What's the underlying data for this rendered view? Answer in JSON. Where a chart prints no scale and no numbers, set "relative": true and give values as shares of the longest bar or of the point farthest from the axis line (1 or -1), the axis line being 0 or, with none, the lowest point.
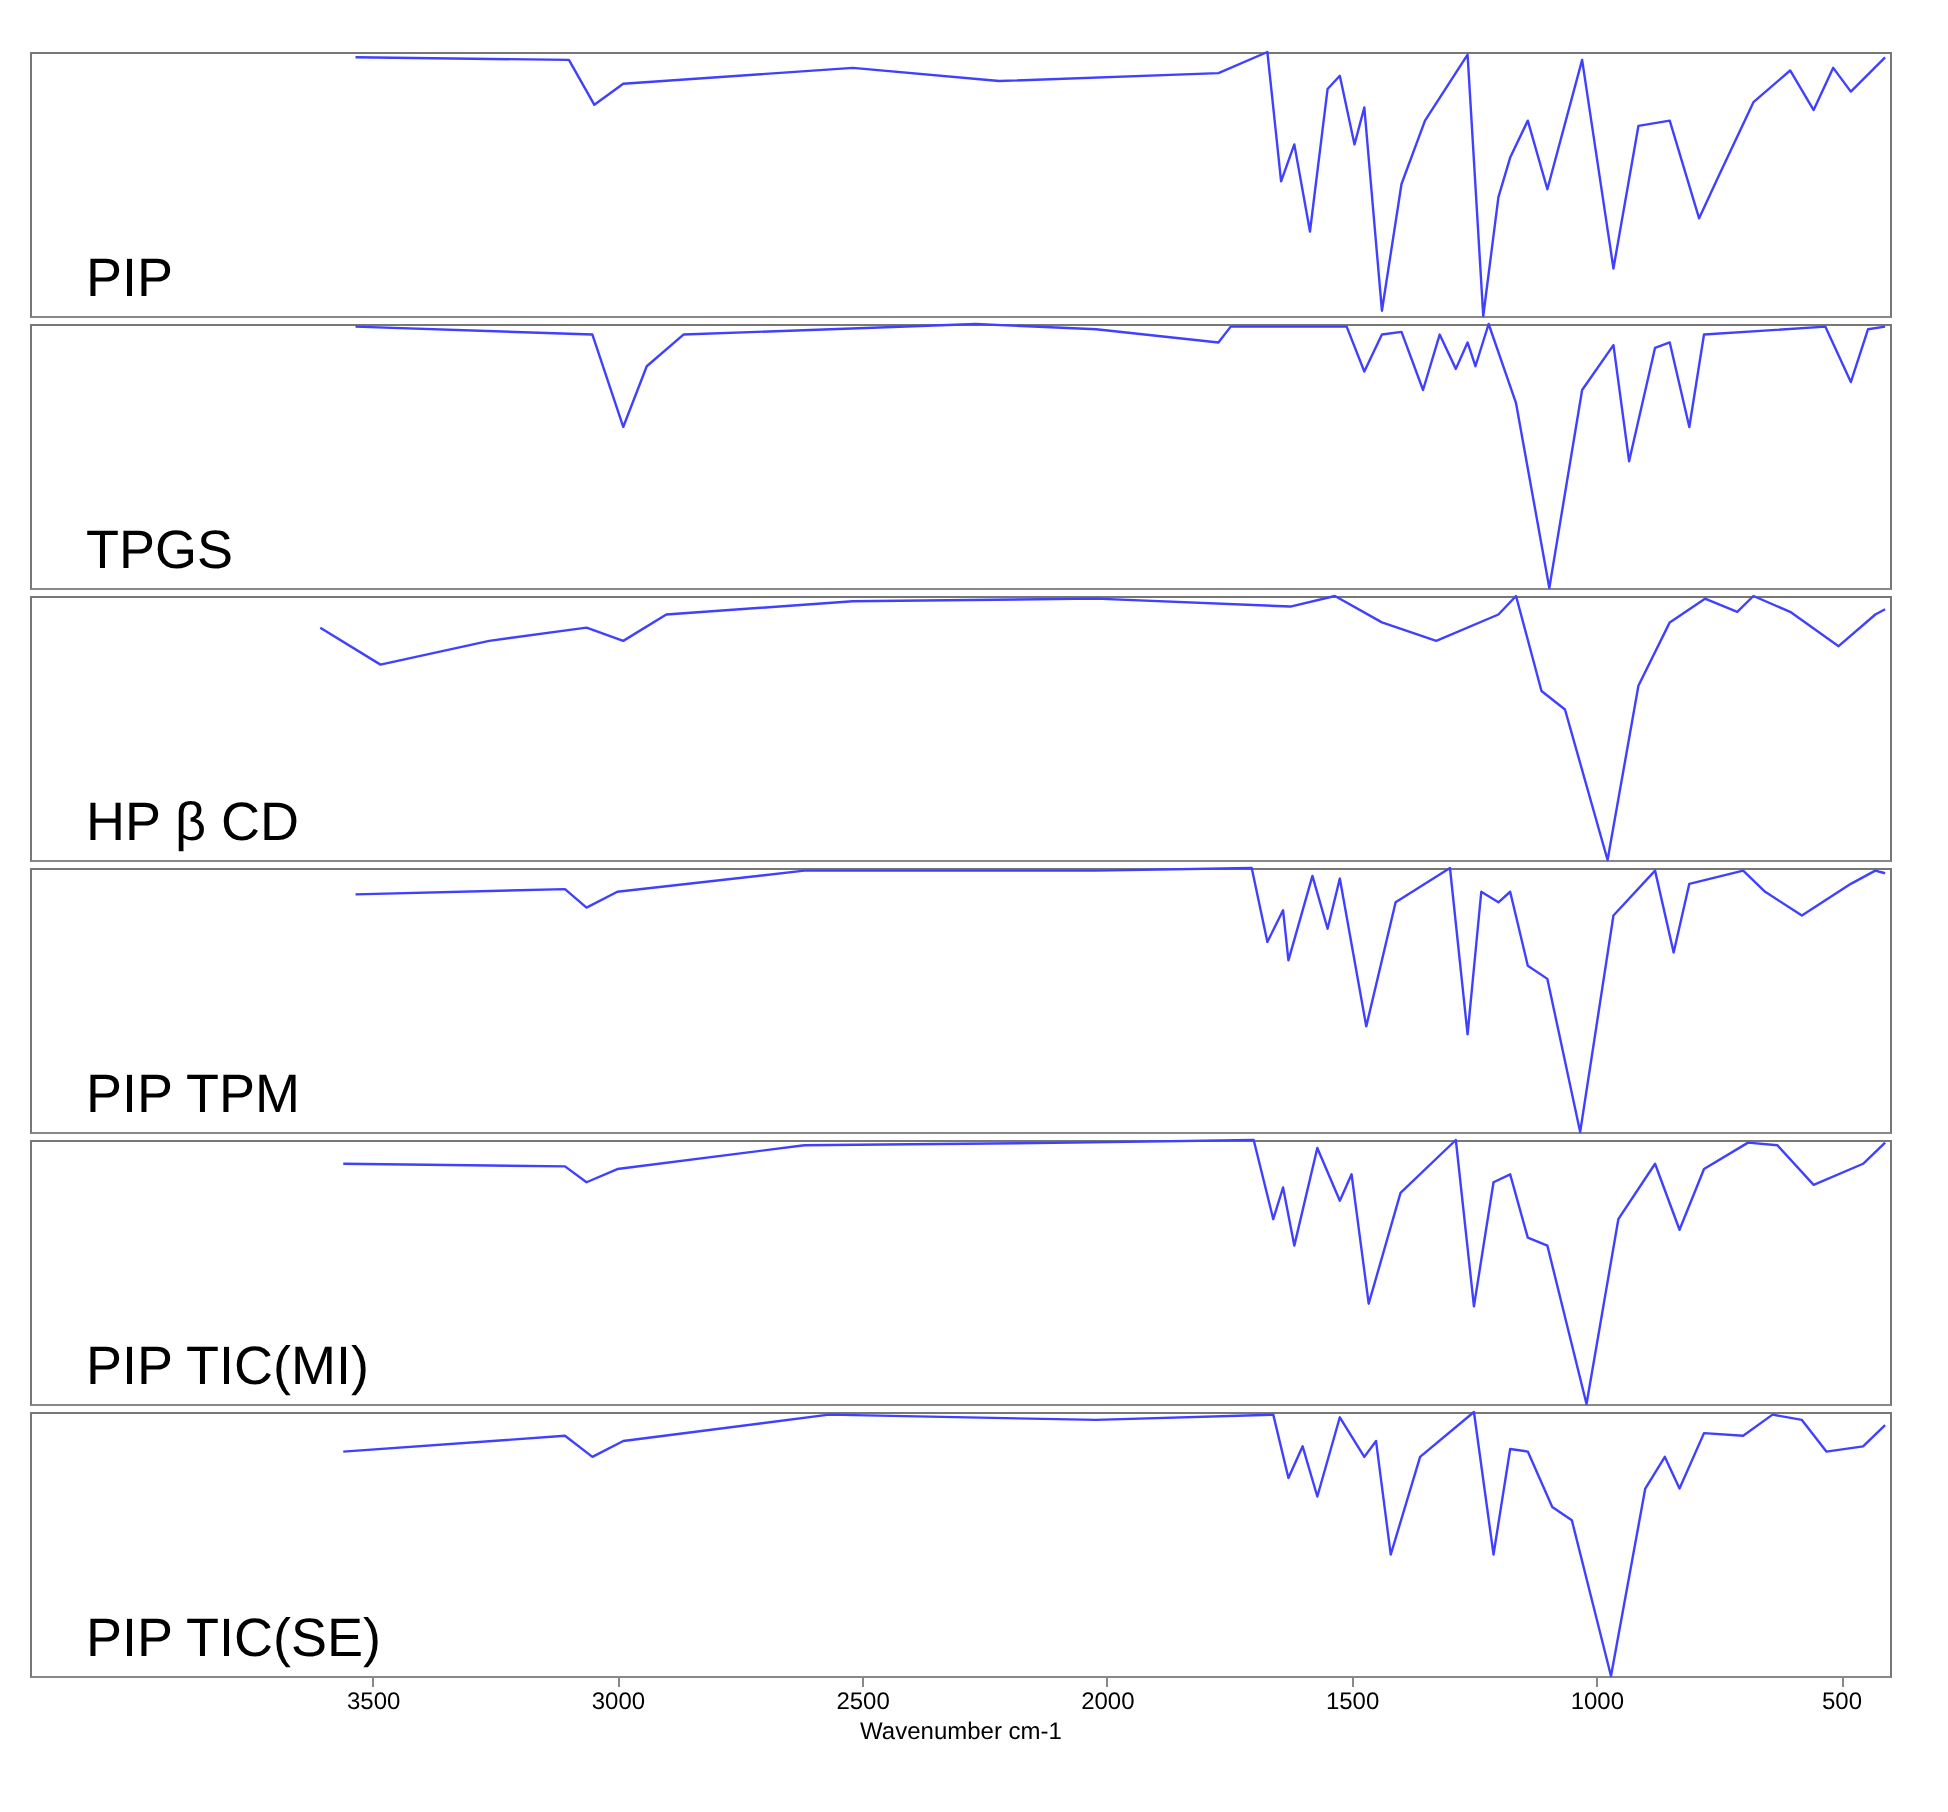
{
  "chart_data": [
    {
      "type": "line",
      "relative": true,
      "xlim": [
        4200,
        400
      ],
      "tick_labels": false,
      "grid": false,
      "marker": "none",
      "line_style": "solid",
      "x": [
        3535,
        3099,
        3047,
        2988,
        2519,
        2220,
        1772,
        1672,
        1644,
        1617,
        1585,
        1549,
        1524,
        1494,
        1474,
        1438,
        1398,
        1350,
        1263,
        1231,
        1200,
        1176,
        1140,
        1100,
        1029,
        965,
        914,
        850,
        790,
        750,
        679,
        604,
        556,
        516,
        480,
        410
      ],
      "series": [
        {
          "name": "PIP",
          "color": "#4040ff",
          "values": [
            0.98,
            0.97,
            0.8,
            0.88,
            0.94,
            0.89,
            0.92,
            1.0,
            0.51,
            0.65,
            0.32,
            0.86,
            0.91,
            0.65,
            0.79,
            0.02,
            0.5,
            0.74,
            0.99,
            0.0,
            0.45,
            0.6,
            0.74,
            0.48,
            0.97,
            0.18,
            0.72,
            0.74,
            0.37,
            0.53,
            0.81,
            0.93,
            0.78,
            0.94,
            0.85,
            0.98
          ]
        }
      ]
    },
    {
      "type": "line",
      "relative": true,
      "xlim": [
        4200,
        400
      ],
      "tick_labels": false,
      "grid": false,
      "marker": "none",
      "line_style": "solid",
      "x": [
        3535,
        3051,
        2988,
        2940,
        2865,
        2268,
        2022,
        1772,
        1747,
        1510,
        1474,
        1438,
        1398,
        1354,
        1320,
        1287,
        1263,
        1247,
        1220,
        1164,
        1096,
        1029,
        965,
        933,
        880,
        850,
        810,
        780,
        532,
        480,
        445,
        410
      ],
      "series": [
        {
          "name": "TPGS",
          "color": "#4040ff",
          "values": [
            0.99,
            0.96,
            0.61,
            0.84,
            0.96,
            1.0,
            0.98,
            0.93,
            0.99,
            0.99,
            0.82,
            0.96,
            0.97,
            0.75,
            0.96,
            0.83,
            0.93,
            0.84,
            1.0,
            0.7,
            0.0,
            0.75,
            0.92,
            0.48,
            0.91,
            0.93,
            0.61,
            0.96,
            0.99,
            0.78,
            0.98,
            0.99
          ]
        }
      ]
    },
    {
      "type": "line",
      "relative": true,
      "xlim": [
        4200,
        400
      ],
      "tick_labels": false,
      "grid": false,
      "marker": "none",
      "line_style": "solid",
      "x": [
        3607,
        3484,
        3262,
        3063,
        2988,
        2900,
        2519,
        2022,
        1625,
        1534,
        1438,
        1327,
        1200,
        1164,
        1112,
        1064,
        977,
        914,
        850,
        778,
        712,
        679,
        604,
        505,
        430,
        410
      ],
      "series": [
        {
          "name": "HP β CD",
          "color": "#4040ff",
          "values": [
            0.88,
            0.74,
            0.83,
            0.88,
            0.83,
            0.93,
            0.98,
            0.99,
            0.96,
            1.0,
            0.9,
            0.83,
            0.93,
            1.0,
            0.64,
            0.57,
            0.0,
            0.66,
            0.9,
            0.99,
            0.94,
            1.0,
            0.94,
            0.81,
            0.93,
            0.95
          ]
        }
      ]
    },
    {
      "type": "line",
      "relative": true,
      "xlim": [
        4200,
        400
      ],
      "tick_labels": false,
      "grid": false,
      "marker": "none",
      "line_style": "solid",
      "x": [
        3535,
        3107,
        3063,
        3000,
        2618,
        2022,
        1704,
        1672,
        1640,
        1629,
        1580,
        1549,
        1524,
        1470,
        1410,
        1299,
        1263,
        1235,
        1200,
        1176,
        1140,
        1100,
        1033,
        965,
        880,
        842,
        810,
        700,
        655,
        580,
        480,
        430,
        410
      ],
      "series": [
        {
          "name": "PIP TPM",
          "color": "#4040ff",
          "values": [
            0.9,
            0.92,
            0.85,
            0.91,
            0.99,
            0.99,
            1.0,
            0.72,
            0.84,
            0.65,
            0.97,
            0.77,
            0.96,
            0.4,
            0.87,
            1.0,
            0.37,
            0.91,
            0.87,
            0.91,
            0.63,
            0.58,
            0.0,
            0.82,
            0.99,
            0.68,
            0.94,
            0.99,
            0.91,
            0.82,
            0.94,
            0.99,
            0.98
          ]
        }
      ]
    },
    {
      "type": "line",
      "relative": true,
      "xlim": [
        4200,
        400
      ],
      "tick_labels": false,
      "grid": false,
      "marker": "none",
      "line_style": "solid",
      "x": [
        3560,
        3107,
        3063,
        3000,
        2618,
        2070,
        1700,
        1660,
        1640,
        1617,
        1570,
        1524,
        1500,
        1465,
        1400,
        1287,
        1250,
        1210,
        1176,
        1140,
        1100,
        1020,
        955,
        880,
        830,
        780,
        690,
        630,
        556,
        455,
        410
      ],
      "series": [
        {
          "name": "PIP TIC(MI)",
          "color": "#4040ff",
          "values": [
            0.91,
            0.9,
            0.84,
            0.89,
            0.98,
            0.99,
            1.0,
            0.7,
            0.82,
            0.6,
            0.97,
            0.77,
            0.87,
            0.38,
            0.8,
            1.0,
            0.37,
            0.84,
            0.87,
            0.63,
            0.6,
            0.0,
            0.7,
            0.91,
            0.66,
            0.89,
            0.99,
            0.98,
            0.83,
            0.91,
            0.99
          ]
        }
      ]
    },
    {
      "type": "line",
      "relative": true,
      "xlim": [
        4200,
        400
      ],
      "xticks": [
        3500,
        3000,
        2500,
        2000,
        1500,
        1000,
        500
      ],
      "xlabel": "Wavenumber cm-1",
      "tick_labels": "x",
      "grid": false,
      "marker": "none",
      "line_style": "solid",
      "x": [
        3560,
        3107,
        3051,
        2988,
        2568,
        2022,
        1660,
        1629,
        1600,
        1570,
        1524,
        1474,
        1450,
        1420,
        1360,
        1250,
        1210,
        1176,
        1140,
        1090,
        1050,
        970,
        900,
        860,
        830,
        780,
        700,
        640,
        580,
        530,
        455,
        410
      ],
      "series": [
        {
          "name": "PIP TIC(SE)",
          "color": "#4040ff",
          "values": [
            0.85,
            0.91,
            0.83,
            0.89,
            0.99,
            0.97,
            0.99,
            0.75,
            0.87,
            0.68,
            0.98,
            0.83,
            0.89,
            0.46,
            0.83,
            1.0,
            0.46,
            0.86,
            0.85,
            0.64,
            0.59,
            0.0,
            0.71,
            0.83,
            0.71,
            0.92,
            0.91,
            0.99,
            0.97,
            0.85,
            0.87,
            0.95
          ]
        }
      ]
    }
  ]
}
